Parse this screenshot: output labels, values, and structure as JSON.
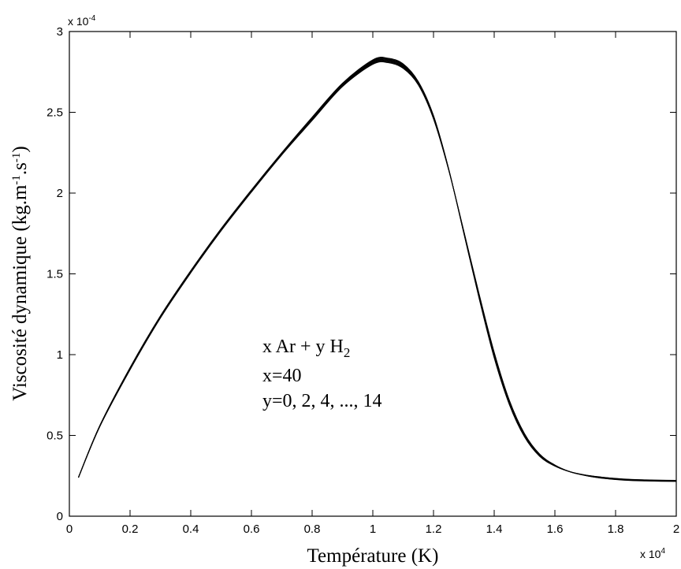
{
  "chart_data": {
    "type": "line",
    "title": "",
    "xlabel": "Température (K)",
    "ylabel_main": "Viscosité dynamique (kg.m",
    "ylabel_sup1": "-1",
    "ylabel_mid": ".s",
    "ylabel_sup2": "-1",
    "ylabel_end": ")",
    "x_multiplier": {
      "base": "x 10",
      "exp": "4"
    },
    "y_multiplier": {
      "base": "x 10",
      "exp": "-4"
    },
    "xlim": [
      0,
      20000
    ],
    "ylim": [
      0,
      0.0003
    ],
    "x_ticks": [
      0,
      2000,
      4000,
      6000,
      8000,
      10000,
      12000,
      14000,
      16000,
      18000,
      20000
    ],
    "x_tick_labels": [
      "0",
      "0.2",
      "0.4",
      "0.6",
      "0.8",
      "1",
      "1.2",
      "1.4",
      "1.6",
      "1.8",
      "2"
    ],
    "y_ticks": [
      0,
      5e-05,
      0.0001,
      0.00015,
      0.0002,
      0.00025,
      0.0003
    ],
    "y_tick_labels": [
      "0",
      "0.5",
      "1",
      "1.5",
      "2",
      "2.5",
      "3"
    ],
    "grid": false,
    "legend": "none",
    "annotation": {
      "line1_main": "x Ar + y H",
      "line1_sub": "2",
      "line2": "x=40",
      "line3": "y=0, 2, 4, ..., 14"
    },
    "x": [
      300,
      1000,
      2000,
      3000,
      4000,
      5000,
      6000,
      7000,
      8000,
      9000,
      10000,
      10500,
      11000,
      11500,
      12000,
      12500,
      13000,
      13500,
      14000,
      14500,
      15000,
      15500,
      16000,
      16500,
      17000,
      17500,
      18000,
      18500,
      19000,
      19500,
      20000
    ],
    "series": [
      {
        "values": [
          2.41e-05,
          5.6e-05,
          9.2e-05,
          0.000124,
          0.000152,
          0.000178,
          0.000202,
          0.000225,
          0.000247,
          0.000268,
          0.0002825,
          0.0002835,
          0.00028,
          0.000269,
          0.000248,
          0.000215,
          0.000175,
          0.000135,
          9.8e-05,
          6.9e-05,
          4.9e-05,
          3.7e-05,
          3.1e-05,
          2.75e-05,
          2.55e-05,
          2.43e-05,
          2.34e-05,
          2.28e-05,
          2.25e-05,
          2.23e-05,
          2.22e-05
        ]
      },
      {
        "values": [
          2.41e-05,
          5.59e-05,
          9.18e-05,
          0.0001238,
          0.0001518,
          0.0001778,
          0.0002018,
          0.0002248,
          0.0002467,
          0.0002677,
          0.0002821,
          0.0002831,
          0.0002796,
          0.0002687,
          0.0002477,
          0.0002149,
          0.0001752,
          0.0001354,
          9.85e-05,
          6.94e-05,
          4.93e-05,
          3.72e-05,
          3.11e-05,
          2.75e-05,
          2.55e-05,
          2.42e-05,
          2.33e-05,
          2.27e-05,
          2.24e-05,
          2.22e-05,
          2.21e-05
        ]
      },
      {
        "values": [
          2.41e-05,
          5.58e-05,
          9.16e-05,
          0.0001236,
          0.0001516,
          0.0001776,
          0.0002016,
          0.0002246,
          0.0002464,
          0.0002674,
          0.0002817,
          0.0002827,
          0.0002792,
          0.0002684,
          0.0002474,
          0.0002148,
          0.0001754,
          0.0001358,
          9.9e-05,
          6.98e-05,
          4.96e-05,
          3.74e-05,
          3.12e-05,
          2.75e-05,
          2.54e-05,
          2.41e-05,
          2.32e-05,
          2.26e-05,
          2.23e-05,
          2.21e-05,
          2.2e-05
        ]
      },
      {
        "values": [
          2.4e-05,
          5.57e-05,
          9.14e-05,
          0.0001234,
          0.0001514,
          0.0001774,
          0.0002014,
          0.0002244,
          0.0002461,
          0.0002671,
          0.0002813,
          0.0002823,
          0.0002788,
          0.0002681,
          0.0002471,
          0.0002147,
          0.0001756,
          0.0001362,
          9.95e-05,
          7.02e-05,
          4.99e-05,
          3.76e-05,
          3.13e-05,
          2.75e-05,
          2.54e-05,
          2.4e-05,
          2.31e-05,
          2.25e-05,
          2.22e-05,
          2.2e-05,
          2.19e-05
        ]
      },
      {
        "values": [
          2.4e-05,
          5.56e-05,
          9.12e-05,
          0.0001232,
          0.0001512,
          0.0001772,
          0.0002012,
          0.0002242,
          0.0002458,
          0.0002668,
          0.0002809,
          0.0002819,
          0.0002784,
          0.0002678,
          0.0002468,
          0.0002146,
          0.0001758,
          0.0001366,
          0.0001,
          7.06e-05,
          5.02e-05,
          3.78e-05,
          3.14e-05,
          2.75e-05,
          2.53e-05,
          2.39e-05,
          2.3e-05,
          2.24e-05,
          2.21e-05,
          2.19e-05,
          2.18e-05
        ]
      },
      {
        "values": [
          2.4e-05,
          5.55e-05,
          9.1e-05,
          0.000123,
          0.000151,
          0.000177,
          0.000201,
          0.000224,
          0.0002455,
          0.0002665,
          0.0002805,
          0.0002815,
          0.000278,
          0.0002675,
          0.0002465,
          0.0002145,
          0.000176,
          0.000137,
          0.0001005,
          7.1e-05,
          5.05e-05,
          3.8e-05,
          3.15e-05,
          2.75e-05,
          2.53e-05,
          2.38e-05,
          2.29e-05,
          2.23e-05,
          2.2e-05,
          2.18e-05,
          2.17e-05
        ]
      },
      {
        "values": [
          2.39e-05,
          5.54e-05,
          9.08e-05,
          0.0001228,
          0.0001508,
          0.0001768,
          0.0002008,
          0.0002238,
          0.0002452,
          0.0002662,
          0.0002801,
          0.0002811,
          0.0002776,
          0.0002672,
          0.0002462,
          0.0002144,
          0.0001762,
          0.0001374,
          0.000101,
          7.14e-05,
          5.08e-05,
          3.82e-05,
          3.16e-05,
          2.75e-05,
          2.52e-05,
          2.37e-05,
          2.28e-05,
          2.22e-05,
          2.19e-05,
          2.17e-05,
          2.16e-05
        ]
      },
      {
        "values": [
          2.39e-05,
          5.53e-05,
          9.06e-05,
          0.0001226,
          0.0001506,
          0.0001766,
          0.0002006,
          0.0002236,
          0.0002449,
          0.0002659,
          0.0002797,
          0.0002807,
          0.0002772,
          0.0002669,
          0.0002459,
          0.0002143,
          0.0001764,
          0.0001378,
          0.0001015,
          7.18e-05,
          5.11e-05,
          3.84e-05,
          3.17e-05,
          2.75e-05,
          2.52e-05,
          2.36e-05,
          2.27e-05,
          2.21e-05,
          2.18e-05,
          2.16e-05,
          2.15e-05
        ]
      }
    ]
  }
}
